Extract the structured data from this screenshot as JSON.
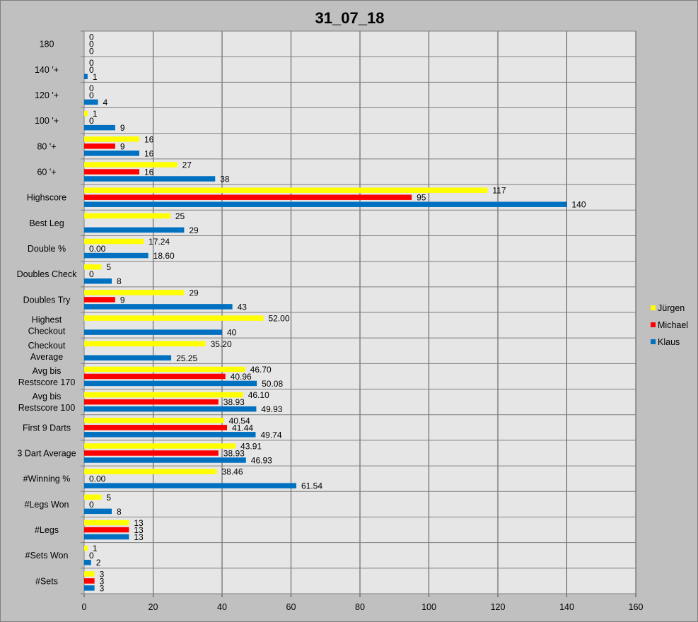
{
  "chart_data": {
    "type": "bar",
    "orientation": "horizontal",
    "title": "31_07_18",
    "xlim": [
      0,
      160
    ],
    "xticks": [
      0,
      20,
      40,
      60,
      80,
      100,
      120,
      140,
      160
    ],
    "grid": true,
    "legend_position": "right",
    "categories": [
      "180",
      "140 '+",
      "120 '+",
      "100 '+",
      "80 '+",
      "60 '+",
      "Highscore",
      "Best Leg",
      "Double %",
      "Doubles Check",
      "Doubles Try",
      "Highest Checkout",
      "Checkout Average",
      "Avg bis Restscore 170",
      "Avg bis Restscore 100",
      "First 9 Darts",
      "3 Dart Average",
      "#Winning %",
      "#Legs Won",
      "#Legs",
      "#Sets Won",
      "#Sets"
    ],
    "series": [
      {
        "name": "Jürgen",
        "color": "#ffff00",
        "values": [
          0,
          0,
          0,
          1,
          16,
          27,
          117,
          25,
          17.24,
          5,
          29,
          52.0,
          35.2,
          46.7,
          46.1,
          40.54,
          43.91,
          38.46,
          5,
          13,
          1,
          3
        ],
        "labels": [
          "0",
          "0",
          "0",
          "1",
          "16",
          "27",
          "117",
          "25",
          "17.24",
          "5",
          "29",
          "52.00",
          "35.20",
          "46.70",
          "46.10",
          "40.54",
          "43.91",
          "38.46",
          "5",
          "13",
          "1",
          "3"
        ]
      },
      {
        "name": "Michael",
        "color": "#ff0000",
        "values": [
          0,
          0,
          0,
          0,
          9,
          16,
          95,
          null,
          0.0,
          0,
          9,
          null,
          null,
          40.96,
          38.93,
          41.44,
          38.93,
          0.0,
          0,
          13,
          0,
          3
        ],
        "labels": [
          "0",
          "0",
          "0",
          "0",
          "9",
          "16",
          "95",
          "",
          "0.00",
          "0",
          "9",
          "",
          "",
          "40.96",
          "38.93",
          "41.44",
          "38.93",
          "0.00",
          "0",
          "13",
          "0",
          "3"
        ]
      },
      {
        "name": "Klaus",
        "color": "#0070c0",
        "values": [
          0,
          1,
          4,
          9,
          16,
          38,
          140,
          29,
          18.6,
          8,
          43,
          40,
          25.25,
          50.08,
          49.93,
          49.74,
          46.93,
          61.54,
          8,
          13,
          2,
          3
        ],
        "labels": [
          "0",
          "1",
          "4",
          "9",
          "16",
          "38",
          "140",
          "29",
          "18.60",
          "8",
          "43",
          "40",
          "25.25",
          "50.08",
          "49.93",
          "49.74",
          "46.93",
          "61.54",
          "8",
          "13",
          "2",
          "3"
        ]
      }
    ]
  }
}
